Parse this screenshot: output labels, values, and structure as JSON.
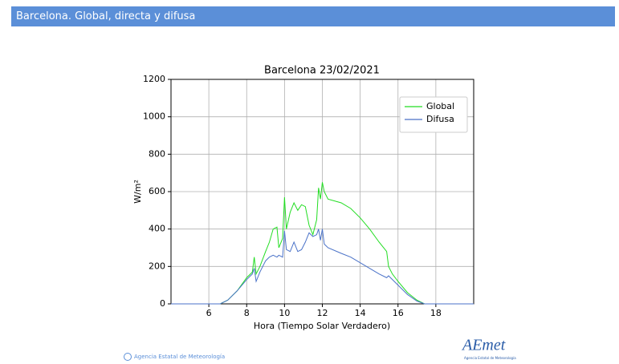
{
  "header": {
    "title": "Barcelona. Global, directa y difusa"
  },
  "footer": {
    "agency": "Agencia Estatal de Meteorología",
    "logo": "AEmet",
    "logo_subtitle": "Agencia Estatal de Meteorología"
  },
  "chart_data": {
    "type": "line",
    "title": "Barcelona 23/02/2021",
    "x_label": "Hora (Tiempo Solar Verdadero)",
    "y_label": "W/m²",
    "x": [
      4,
      6.6,
      7,
      7.5,
      8,
      8.3,
      8.4,
      8.5,
      8.7,
      9,
      9.2,
      9.4,
      9.6,
      9.7,
      9.9,
      10,
      10.1,
      10.3,
      10.5,
      10.7,
      10.9,
      11.1,
      11.3,
      11.5,
      11.7,
      11.8,
      11.9,
      12,
      12.1,
      12.3,
      13,
      13.5,
      14,
      14.5,
      15,
      15.4,
      15.5,
      15.7,
      16,
      16.5,
      17,
      17.4,
      20
    ],
    "series": [
      {
        "name": "Global",
        "color": "#22dd22",
        "values": [
          0,
          0,
          20,
          70,
          140,
          170,
          250,
          160,
          200,
          280,
          330,
          400,
          410,
          300,
          350,
          570,
          400,
          490,
          540,
          500,
          530,
          520,
          420,
          370,
          450,
          620,
          560,
          650,
          600,
          560,
          540,
          510,
          460,
          400,
          330,
          280,
          200,
          160,
          120,
          60,
          20,
          0,
          0
        ]
      },
      {
        "name": "Difusa",
        "color": "#4a72c8",
        "values": [
          0,
          0,
          20,
          70,
          130,
          160,
          190,
          120,
          170,
          230,
          250,
          260,
          250,
          260,
          250,
          390,
          290,
          280,
          330,
          280,
          290,
          330,
          380,
          360,
          370,
          400,
          340,
          400,
          320,
          300,
          270,
          250,
          220,
          190,
          160,
          140,
          150,
          130,
          100,
          50,
          15,
          0,
          0
        ]
      }
    ],
    "xlim": [
      4,
      20
    ],
    "xticks": [
      6,
      8,
      10,
      12,
      14,
      16,
      18
    ],
    "ylim": [
      0,
      1200
    ],
    "yticks": [
      0,
      200,
      400,
      600,
      800,
      1000,
      1200
    ],
    "grid": true,
    "legend": "upper right"
  }
}
